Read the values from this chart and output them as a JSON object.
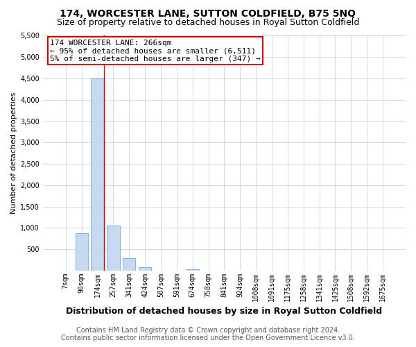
{
  "title": "174, WORCESTER LANE, SUTTON COLDFIELD, B75 5NQ",
  "subtitle": "Size of property relative to detached houses in Royal Sutton Coldfield",
  "xlabel": "Distribution of detached houses by size in Royal Sutton Coldfield",
  "ylabel": "Number of detached properties",
  "footer1": "Contains HM Land Registry data © Crown copyright and database right 2024.",
  "footer2": "Contains public sector information licensed under the Open Government Licence v3.0.",
  "annotation_line1": "174 WORCESTER LANE: 266sqm",
  "annotation_line2": "← 95% of detached houses are smaller (6,511)",
  "annotation_line3": "5% of semi-detached houses are larger (347) →",
  "categories": [
    "7sqm",
    "90sqm",
    "174sqm",
    "257sqm",
    "341sqm",
    "424sqm",
    "507sqm",
    "591sqm",
    "674sqm",
    "758sqm",
    "841sqm",
    "924sqm",
    "1008sqm",
    "1091sqm",
    "1175sqm",
    "1258sqm",
    "1341sqm",
    "1425sqm",
    "1508sqm",
    "1592sqm",
    "1675sqm"
  ],
  "values": [
    0,
    870,
    4500,
    1060,
    290,
    70,
    0,
    0,
    30,
    0,
    0,
    0,
    0,
    0,
    0,
    0,
    0,
    0,
    0,
    0,
    0
  ],
  "highlight_index": 2,
  "bar_color": "#c6d9f0",
  "bar_edge_color": "#5b9bd5",
  "highlight_line_color": "#cc0000",
  "bg_color": "#ffffff",
  "grid_color": "#d0d8e8",
  "annotation_box_edge_color": "#cc0000",
  "ylim": [
    0,
    5500
  ],
  "yticks": [
    0,
    500,
    1000,
    1500,
    2000,
    2500,
    3000,
    3500,
    4000,
    4500,
    5000,
    5500
  ],
  "title_fontsize": 10,
  "subtitle_fontsize": 9,
  "tick_fontsize": 7,
  "ylabel_fontsize": 8,
  "xlabel_fontsize": 9,
  "footer_fontsize": 7,
  "ann_fontsize": 8
}
